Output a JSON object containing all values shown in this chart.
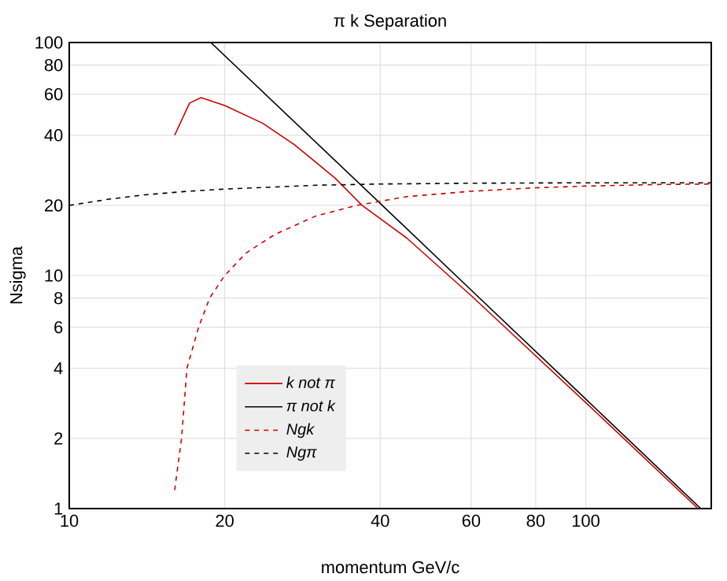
{
  "chart_data": {
    "type": "line",
    "title": "π k Separation",
    "xlabel": "momentum GeV/c",
    "ylabel": "Nsigma",
    "log": "xy",
    "xlim": [
      10,
      175
    ],
    "ylim": [
      1,
      100
    ],
    "xticks": [
      10,
      20,
      40,
      60,
      80,
      100
    ],
    "yticks": [
      1,
      2,
      4,
      6,
      8,
      10,
      20,
      40,
      60,
      80,
      100
    ],
    "grid": true,
    "legend": "bottom left",
    "series": [
      {
        "name": "k not π",
        "color": "#cc0000",
        "line_style": "solid",
        "x": [
          16.0,
          17.1,
          18.0,
          20,
          23.7,
          27.3,
          32.7,
          36.9,
          45,
          60,
          100,
          165
        ],
        "values": [
          40,
          55,
          58,
          53.7,
          45,
          36.4,
          26.2,
          20,
          14.5,
          8.2,
          2.85,
          1
        ]
      },
      {
        "name": "π not k",
        "color": "#000000",
        "line_style": "solid",
        "x": [
          18.8,
          40,
          60,
          100,
          167
        ],
        "values": [
          100,
          20.4,
          8.66,
          2.95,
          1
        ]
      },
      {
        "name": "Ngk",
        "color": "#cc0000",
        "line_style": "dashed",
        "x": [
          16,
          16.5,
          16.9,
          17.8,
          18.7,
          20,
          22,
          25,
          30,
          36,
          45,
          60,
          80,
          100,
          140,
          175
        ],
        "values": [
          1.2,
          2,
          4,
          6,
          8,
          10,
          12.5,
          15,
          18,
          20,
          21.8,
          23,
          23.8,
          24.2,
          24.6,
          24.7
        ]
      },
      {
        "name": "Ngπ",
        "color": "#000000",
        "line_style": "dashed",
        "x": [
          10,
          12,
          14,
          17,
          20,
          25,
          30,
          40,
          60,
          100,
          175
        ],
        "values": [
          20,
          21.3,
          22.2,
          23,
          23.5,
          24,
          24.4,
          24.7,
          24.9,
          25,
          25
        ]
      }
    ]
  }
}
